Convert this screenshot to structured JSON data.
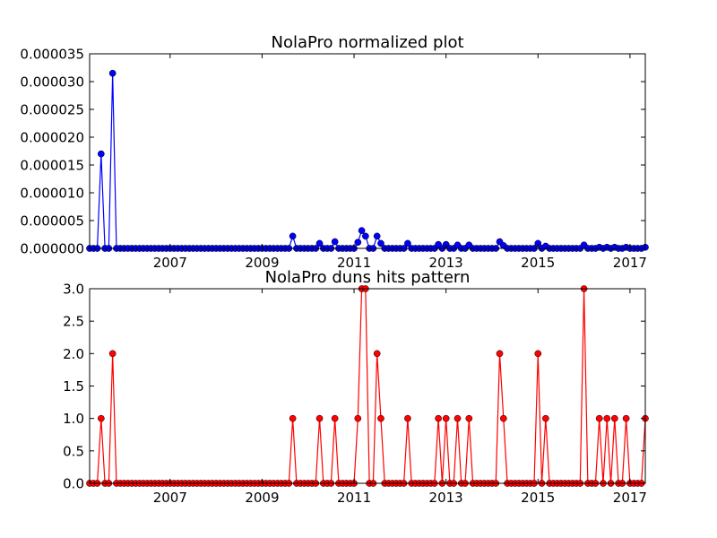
{
  "chart_data": [
    {
      "type": "line",
      "title": "NolaPro normalized plot",
      "xlabel": "",
      "ylabel": "",
      "x_range": [
        "2005-04",
        "2017-05"
      ],
      "ylim": [
        0,
        3.5e-05
      ],
      "x_ticks": [
        "2007",
        "2009",
        "2011",
        "2013",
        "2015",
        "2017"
      ],
      "y_ticks": [
        "0.000000",
        "0.000005",
        "0.000010",
        "0.000015",
        "0.000020",
        "0.000025",
        "0.000030",
        "0.000035"
      ],
      "grid": false,
      "legend": "none",
      "series": [
        {
          "color": "#0000ff",
          "marker": "circle",
          "nonzero_points": [
            {
              "x": "2005-07",
              "y": 1.7e-05
            },
            {
              "x": "2005-10",
              "y": 3.15e-05
            },
            {
              "x": "2009-09",
              "y": 2.2e-06
            },
            {
              "x": "2010-04",
              "y": 9e-07
            },
            {
              "x": "2010-08",
              "y": 1.2e-06
            },
            {
              "x": "2011-02",
              "y": 1.1e-06
            },
            {
              "x": "2011-03",
              "y": 3.2e-06
            },
            {
              "x": "2011-04",
              "y": 2.2e-06
            },
            {
              "x": "2011-07",
              "y": 2.2e-06
            },
            {
              "x": "2011-08",
              "y": 9e-07
            },
            {
              "x": "2012-03",
              "y": 9e-07
            },
            {
              "x": "2012-11",
              "y": 7e-07
            },
            {
              "x": "2013-01",
              "y": 7e-07
            },
            {
              "x": "2013-04",
              "y": 6e-07
            },
            {
              "x": "2013-07",
              "y": 6e-07
            },
            {
              "x": "2014-03",
              "y": 1.2e-06
            },
            {
              "x": "2014-04",
              "y": 5e-07
            },
            {
              "x": "2015-01",
              "y": 9e-07
            },
            {
              "x": "2015-03",
              "y": 4e-07
            },
            {
              "x": "2016-01",
              "y": 6e-07
            },
            {
              "x": "2016-05",
              "y": 2e-07
            },
            {
              "x": "2016-07",
              "y": 2e-07
            },
            {
              "x": "2016-09",
              "y": 2e-07
            },
            {
              "x": "2016-12",
              "y": 2e-07
            },
            {
              "x": "2017-05",
              "y": 2e-07
            }
          ]
        }
      ]
    },
    {
      "type": "line",
      "title": "NolaPro duns hits pattern",
      "xlabel": "",
      "ylabel": "",
      "x_range": [
        "2005-04",
        "2017-05"
      ],
      "ylim": [
        0,
        3.0
      ],
      "x_ticks": [
        "2007",
        "2009",
        "2011",
        "2013",
        "2015",
        "2017"
      ],
      "y_ticks": [
        "0.0",
        "0.5",
        "1.0",
        "1.5",
        "2.0",
        "2.5",
        "3.0"
      ],
      "grid": false,
      "legend": "none",
      "series": [
        {
          "color": "#ff0000",
          "marker": "circle",
          "nonzero_points": [
            {
              "x": "2005-07",
              "y": 1
            },
            {
              "x": "2005-10",
              "y": 2
            },
            {
              "x": "2009-09",
              "y": 1
            },
            {
              "x": "2010-04",
              "y": 1
            },
            {
              "x": "2010-08",
              "y": 1
            },
            {
              "x": "2011-02",
              "y": 1
            },
            {
              "x": "2011-03",
              "y": 3
            },
            {
              "x": "2011-04",
              "y": 3
            },
            {
              "x": "2011-07",
              "y": 2
            },
            {
              "x": "2011-08",
              "y": 1
            },
            {
              "x": "2012-03",
              "y": 1
            },
            {
              "x": "2012-11",
              "y": 1
            },
            {
              "x": "2013-01",
              "y": 1
            },
            {
              "x": "2013-04",
              "y": 1
            },
            {
              "x": "2013-07",
              "y": 1
            },
            {
              "x": "2014-03",
              "y": 2
            },
            {
              "x": "2014-04",
              "y": 1
            },
            {
              "x": "2015-01",
              "y": 2
            },
            {
              "x": "2015-03",
              "y": 1
            },
            {
              "x": "2016-01",
              "y": 3
            },
            {
              "x": "2016-05",
              "y": 1
            },
            {
              "x": "2016-07",
              "y": 1
            },
            {
              "x": "2016-09",
              "y": 1
            },
            {
              "x": "2016-12",
              "y": 1
            },
            {
              "x": "2017-05",
              "y": 1
            }
          ]
        }
      ]
    }
  ]
}
